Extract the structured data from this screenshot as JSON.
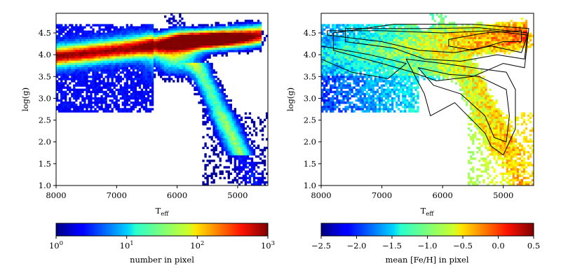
{
  "chart_data": [
    {
      "type": "heatmap",
      "title": "",
      "xlabel": "T",
      "xlabel_sub": "eff",
      "ylabel": "log(g)",
      "xlim": [
        8000,
        4500
      ],
      "ylim": [
        4.95,
        1.0
      ],
      "x_ticks": [
        8000,
        7000,
        6000,
        5000
      ],
      "y_ticks": [
        1.0,
        1.5,
        2.0,
        2.5,
        3.0,
        3.5,
        4.0,
        4.5
      ],
      "x_tick_labels": [
        "8000",
        "7000",
        "6000",
        "5000"
      ],
      "y_tick_labels": [
        "1.0",
        "1.5",
        "2.0",
        "2.5",
        "3.0",
        "3.5",
        "4.0",
        "4.5"
      ],
      "colormap": "jet",
      "color_scale": "log",
      "colorbar": {
        "label": "number in pixel",
        "range": [
          1,
          1000
        ],
        "ticks": [
          1,
          10,
          100,
          1000
        ],
        "tick_labels": [
          {
            "base": "10",
            "exp": "0"
          },
          {
            "base": "10",
            "exp": "1"
          },
          {
            "base": "10",
            "exp": "2"
          },
          {
            "base": "10",
            "exp": "3"
          }
        ]
      }
    },
    {
      "type": "heatmap",
      "title": "",
      "xlabel": "T",
      "xlabel_sub": "eff",
      "ylabel": "log(g)",
      "xlim": [
        8000,
        4500
      ],
      "ylim": [
        4.95,
        1.0
      ],
      "x_ticks": [
        8000,
        7000,
        6000,
        5000
      ],
      "y_ticks": [
        1.0,
        1.5,
        2.0,
        2.5,
        3.0,
        3.5,
        4.0,
        4.5
      ],
      "x_tick_labels": [
        "8000",
        "7000",
        "6000",
        "5000"
      ],
      "y_tick_labels": [
        "1.0",
        "1.5",
        "2.0",
        "2.5",
        "3.0",
        "3.5",
        "4.0",
        "4.5"
      ],
      "colormap": "jet",
      "color_scale": "linear",
      "contours": true,
      "colorbar": {
        "label": "mean [Fe/H] in pixel",
        "range": [
          -2.5,
          0.5
        ],
        "ticks": [
          -2.5,
          -2.0,
          -1.5,
          -1.0,
          -0.5,
          0.0,
          0.5
        ],
        "tick_labels": [
          "−2.5",
          "−2.0",
          "−1.5",
          "−1.0",
          "−0.5",
          "0.0",
          "0.5"
        ]
      }
    }
  ]
}
